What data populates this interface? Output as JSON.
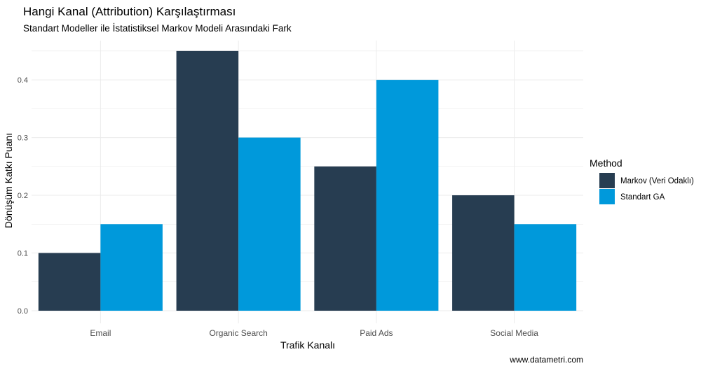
{
  "chart_data": {
    "type": "bar",
    "title": "Hangi Kanal (Attribution) Karşılaştırması",
    "subtitle": "Standart Modeller ile İstatistiksel Markov Modeli Arasındaki Fark",
    "xlabel": "Trafik Kanalı",
    "ylabel": "Dönüşüm Katkı Puanı",
    "categories": [
      "Email",
      "Organic Search",
      "Paid Ads",
      "Social Media"
    ],
    "series": [
      {
        "name": "Markov (Veri Odaklı)",
        "color": "#273d51",
        "values": [
          0.1,
          0.45,
          0.25,
          0.2
        ]
      },
      {
        "name": "Standart GA",
        "color": "#0099db",
        "values": [
          0.15,
          0.3,
          0.4,
          0.15
        ]
      }
    ],
    "yticks": [
      "0.0",
      "0.1",
      "0.2",
      "0.3",
      "0.4"
    ],
    "ylim": [
      0,
      0.468
    ],
    "grid": true,
    "legend_title": "Method",
    "legend_position": "right",
    "caption": "www.datametri.com"
  }
}
